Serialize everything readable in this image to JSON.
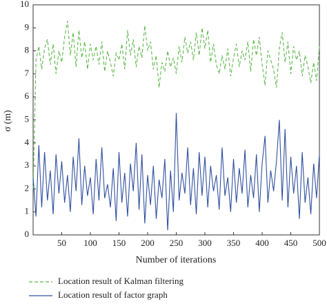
{
  "chart_data": {
    "type": "line",
    "x_label": "Number of iterations",
    "y_label": "σ (m)",
    "x": [
      0,
      5,
      10,
      15,
      20,
      25,
      30,
      35,
      40,
      45,
      50,
      55,
      60,
      65,
      70,
      75,
      80,
      85,
      90,
      95,
      100,
      105,
      110,
      115,
      120,
      125,
      130,
      135,
      140,
      145,
      150,
      155,
      160,
      165,
      170,
      175,
      180,
      185,
      190,
      195,
      200,
      205,
      210,
      215,
      220,
      225,
      230,
      235,
      240,
      245,
      250,
      255,
      260,
      265,
      270,
      275,
      280,
      285,
      290,
      295,
      300,
      305,
      310,
      315,
      320,
      325,
      330,
      335,
      340,
      345,
      350,
      355,
      360,
      365,
      370,
      375,
      380,
      385,
      390,
      395,
      400,
      405,
      410,
      415,
      420,
      425,
      430,
      435,
      440,
      445,
      450,
      455,
      460,
      465,
      470,
      475,
      480,
      485,
      490,
      495,
      500
    ],
    "series": [
      {
        "name": "Location result of Kalman filtering",
        "color": "#5cb84a",
        "dash": true,
        "values": [
          2.0,
          7.6,
          8.2,
          7.2,
          8.1,
          8.5,
          7.4,
          8.3,
          7.0,
          8.0,
          7.5,
          8.6,
          9.3,
          7.8,
          8.8,
          7.3,
          8.9,
          7.7,
          8.4,
          7.2,
          8.3,
          7.6,
          8.2,
          7.4,
          8.4,
          7.1,
          8.0,
          7.5,
          6.9,
          7.9,
          7.6,
          8.3,
          7.2,
          8.9,
          7.8,
          8.5,
          7.3,
          8.2,
          7.7,
          9.1,
          8.0,
          8.4,
          7.2,
          7.8,
          6.4,
          7.5,
          7.1,
          8.0,
          7.3,
          7.7,
          7.0,
          8.2,
          7.5,
          8.6,
          7.9,
          8.4,
          7.6,
          8.8,
          7.8,
          9.0,
          8.1,
          8.9,
          7.5,
          8.3,
          7.4,
          7.0,
          7.8,
          7.2,
          8.1,
          6.9,
          7.7,
          8.3,
          7.3,
          8.0,
          7.6,
          8.4,
          7.1,
          8.5,
          7.8,
          8.6,
          7.4,
          6.5,
          8.0,
          7.6,
          7.2,
          6.4,
          8.1,
          8.8,
          7.5,
          8.4,
          7.0,
          8.2,
          7.6,
          8.0,
          6.9,
          7.8,
          7.3,
          6.6,
          7.5,
          6.7,
          8.2
        ]
      },
      {
        "name": "Location result of factor graph",
        "color": "#2f4f9e",
        "dash": false,
        "values": [
          2.5,
          0.8,
          3.9,
          1.2,
          3.6,
          1.5,
          2.8,
          0.9,
          3.5,
          1.8,
          3.2,
          1.4,
          2.6,
          1.0,
          3.4,
          1.9,
          4.2,
          1.3,
          3.0,
          1.7,
          2.5,
          0.9,
          3.3,
          1.5,
          3.8,
          1.6,
          2.2,
          1.2,
          2.9,
          0.6,
          3.6,
          1.4,
          2.7,
          0.8,
          3.1,
          1.9,
          4.0,
          1.1,
          3.5,
          0.5,
          2.6,
          1.3,
          3.0,
          0.7,
          2.4,
          1.6,
          3.3,
          0.2,
          2.8,
          1.0,
          5.3,
          1.5,
          2.7,
          1.8,
          3.8,
          1.3,
          2.9,
          0.9,
          3.6,
          1.7,
          3.4,
          1.2,
          3.0,
          1.9,
          2.6,
          1.1,
          3.8,
          1.7,
          2.5,
          1.0,
          3.3,
          1.4,
          2.9,
          1.8,
          3.7,
          1.2,
          2.6,
          1.6,
          3.5,
          1.0,
          3.1,
          4.3,
          1.4,
          2.8,
          1.9,
          3.2,
          5.0,
          1.5,
          4.6,
          1.2,
          3.4,
          1.8,
          3.0,
          0.7,
          3.6,
          1.4,
          2.5,
          0.9,
          3.1,
          1.6,
          3.5
        ]
      }
    ],
    "xlim": [
      0,
      500
    ],
    "xticks": [
      50,
      100,
      150,
      200,
      250,
      300,
      350,
      400,
      450,
      500
    ],
    "ylim": [
      0,
      10
    ],
    "yticks": [
      0,
      1,
      2,
      3,
      4,
      5,
      6,
      7,
      8,
      9,
      10
    ]
  }
}
